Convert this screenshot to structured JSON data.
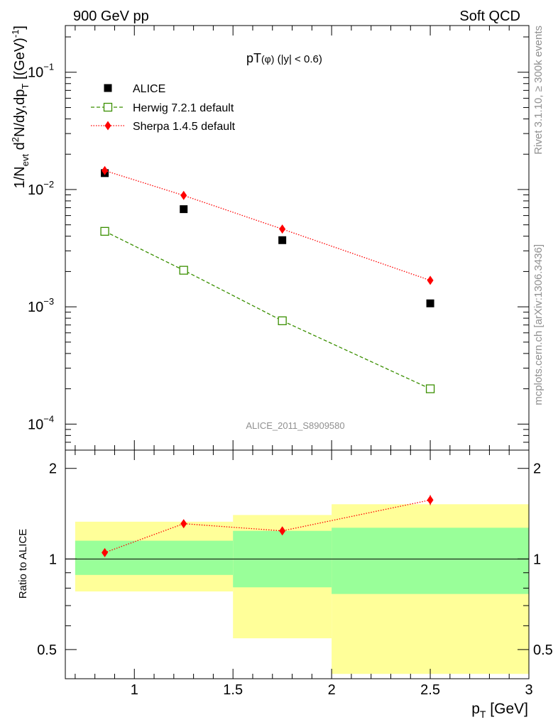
{
  "header": {
    "left": "900 GeV pp",
    "right": "Soft QCD"
  },
  "side": {
    "top": "Rivet 3.1.10, ≥ 300k events",
    "bottom": "mcplots.cern.ch [arXiv:1306.3436]"
  },
  "chart_data": [
    {
      "type": "scatter",
      "title": "pT(φ) (|y| < 0.6)",
      "title_main": "pT",
      "title_sub": "(φ)",
      "title_rest": " (|y| < 0.6)",
      "watermark": "ALICE_2011_S8909580",
      "ylabel": "1/N_evt d²N/dy,dp_T [(GeV)⁻¹]",
      "ylabel_parts": {
        "a": "1/N",
        "b": "evt",
        "c": " d",
        "d": "2",
        "e": "N/dy,dp",
        "f": "T",
        "g": " [(GeV)",
        "h": "-1",
        "i": "]"
      },
      "yscale": "log",
      "ylim": [
        6e-05,
        0.25
      ],
      "xlim": [
        0.65,
        3.0
      ],
      "yticks": [
        {
          "value": 0.1,
          "base": "10",
          "exp": "−1"
        },
        {
          "value": 0.01,
          "base": "10",
          "exp": "−2"
        },
        {
          "value": 0.001,
          "base": "10",
          "exp": "−3"
        },
        {
          "value": 0.0001,
          "base": "10",
          "exp": "−4"
        }
      ],
      "x": [
        0.85,
        1.25,
        1.75,
        2.5
      ],
      "series": [
        {
          "name": "ALICE",
          "values": [
            0.0138,
            0.0068,
            0.0037,
            0.00107
          ],
          "color": "#000000",
          "marker": "square-filled"
        },
        {
          "name": "Herwig 7.2.1 default",
          "values": [
            0.0044,
            0.00205,
            0.00076,
            0.0002
          ],
          "color": "#3a8f00",
          "marker": "square-open",
          "line": "dashed"
        },
        {
          "name": "Sherpa 1.4.5 default",
          "values": [
            0.0145,
            0.0089,
            0.0046,
            0.00168
          ],
          "color": "#ff0000",
          "marker": "diamond-filled",
          "line": "dotted"
        }
      ]
    },
    {
      "type": "scatter",
      "ylabel": "Ratio to ALICE",
      "xlabel": "p_T [GeV]",
      "xlabel_parts": {
        "a": "p",
        "b": "T",
        "c": " [GeV]"
      },
      "yscale": "log",
      "ylim": [
        0.4,
        2.3
      ],
      "xlim": [
        0.65,
        3.0
      ],
      "xticks": [
        "1",
        "1.5",
        "2",
        "2.5",
        "3"
      ],
      "xtick_values": [
        1,
        1.5,
        2,
        2.5,
        3
      ],
      "yticks": [
        "0.5",
        "1",
        "2"
      ],
      "ytick_values": [
        0.5,
        1,
        2
      ],
      "bands": [
        {
          "x0": 0.7,
          "x1": 1.5,
          "yellow": [
            0.78,
            1.33
          ],
          "green": [
            0.885,
            1.15
          ]
        },
        {
          "x0": 1.5,
          "x1": 2.0,
          "yellow": [
            0.545,
            1.4
          ],
          "green": [
            0.805,
            1.24
          ]
        },
        {
          "x0": 2.0,
          "x1": 3.0,
          "yellow": [
            0.415,
            1.52
          ],
          "green": [
            0.765,
            1.27
          ]
        }
      ],
      "series": [
        {
          "name": "Sherpa 1.4.5 default",
          "x": [
            0.85,
            1.25,
            1.75,
            2.5
          ],
          "values": [
            1.05,
            1.31,
            1.24,
            1.57
          ],
          "errors": [
            0.02,
            0.025,
            0.03,
            0.06
          ],
          "color": "#ff0000"
        }
      ]
    }
  ]
}
